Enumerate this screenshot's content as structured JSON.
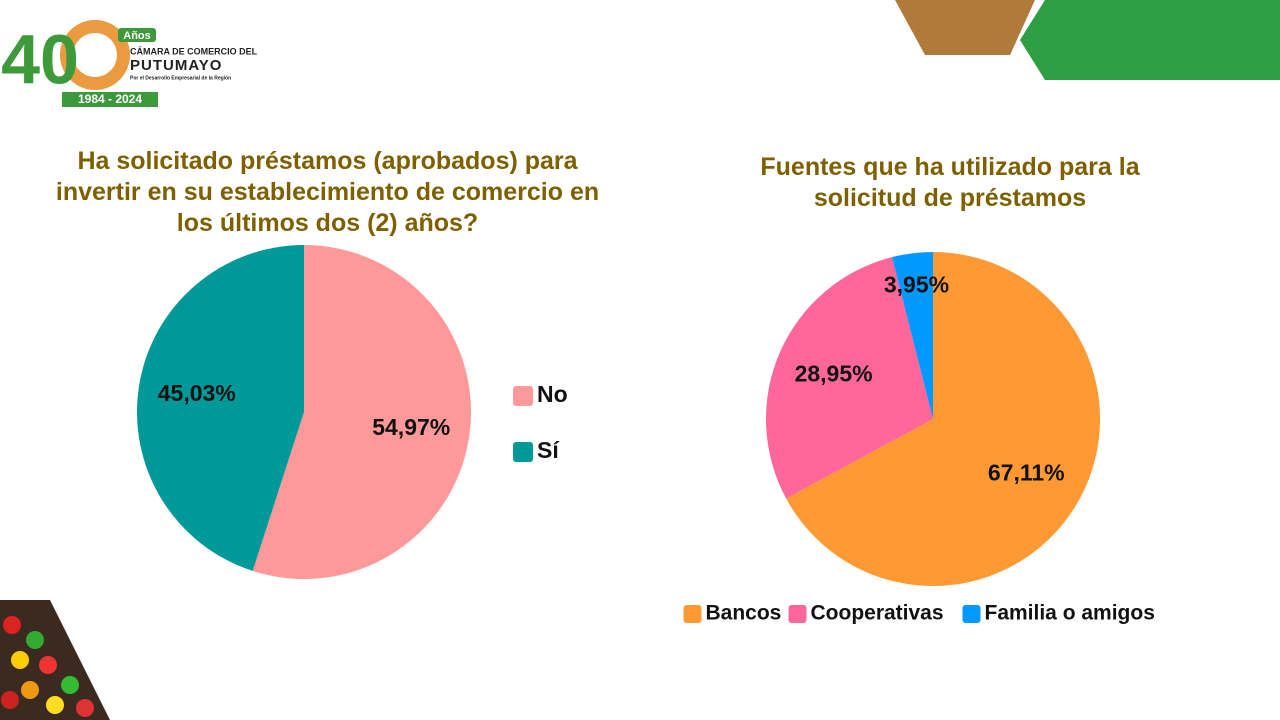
{
  "header": {
    "logo_number": "40",
    "logo_years": "Años",
    "logo_line1": "CÁMARA DE COMERCIO DEL",
    "logo_line2": "PUTUMAYO",
    "logo_line3": "Por el Desarrollo Empresarial de la Región",
    "logo_dates": "1984 - 2024"
  },
  "chart_data": [
    {
      "type": "pie",
      "title": "Ha solicitado préstamos (aprobados) para invertir en su establecimiento de comercio en los últimos dos (2) años?",
      "categories": [
        "No",
        "Sí"
      ],
      "values": [
        54.97,
        45.03
      ],
      "value_labels": [
        "54,97%",
        "45,03%"
      ],
      "colors": [
        "#ff9999",
        "#009999"
      ],
      "legend": "right"
    },
    {
      "type": "pie",
      "title": "Fuentes que ha utilizado para la solicitud de préstamos",
      "categories": [
        "Bancos",
        "Cooperativas",
        "Familia o amigos"
      ],
      "values": [
        67.11,
        28.95,
        3.95
      ],
      "value_labels": [
        "67,11%",
        "28,95%",
        "3,95%"
      ],
      "colors": [
        "#ff9933",
        "#ff6699",
        "#0099ff"
      ],
      "legend": "bottom"
    }
  ]
}
